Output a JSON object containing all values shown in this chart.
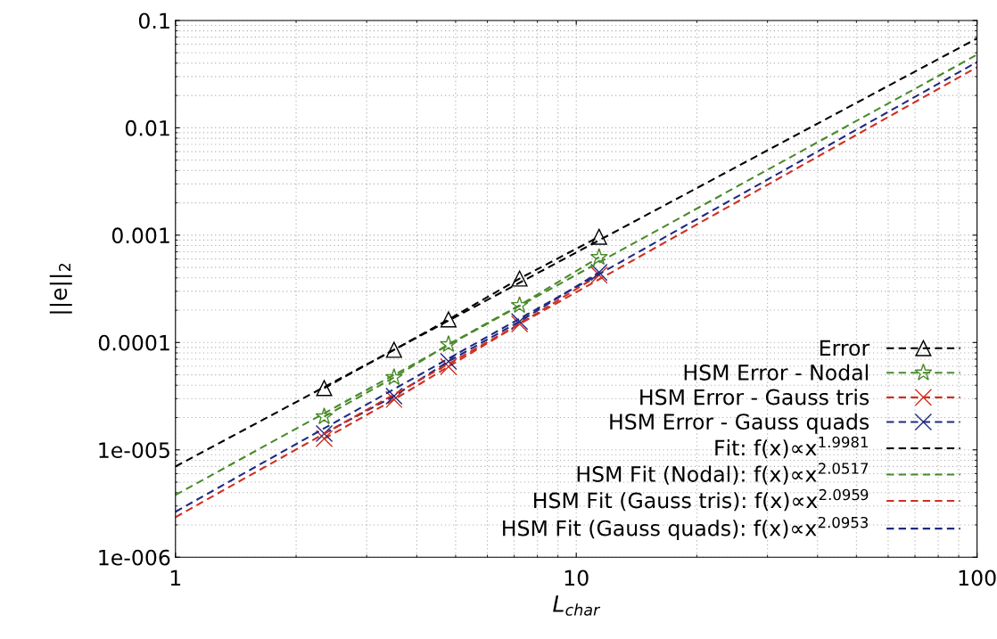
{
  "chart_data": {
    "type": "line",
    "xlabel": "L$_{char}$",
    "ylabel": "||e||$_{2}$",
    "log": "xy",
    "grid": true,
    "legend": "bottom right",
    "line_style": "dashed",
    "xlim": [
      1,
      100
    ],
    "xticks": [
      1,
      10,
      100
    ],
    "ylim": [
      1e-06,
      0.1
    ],
    "yticks": [
      {
        "value": 1e-06,
        "label": "1e-006"
      },
      {
        "value": 1e-05,
        "label": "1e-005"
      },
      0.0001,
      0.001,
      0.01,
      0.1
    ],
    "series": [
      {
        "name": "Error",
        "color": "#000000",
        "marker": "triangle",
        "x": [
          2.35,
          3.51,
          4.8,
          7.22,
          11.4
        ],
        "values": [
          3.76e-05,
          8.55e-05,
          0.000164,
          0.000394,
          0.000966
        ]
      },
      {
        "name": "HSM Error - Nodal",
        "color": "#4a8a2a",
        "marker": "star",
        "x": [
          2.35,
          3.51,
          4.8,
          7.22,
          11.4
        ],
        "values": [
          2.04e-05,
          4.73e-05,
          9.6e-05,
          0.000222,
          0.000622
        ]
      },
      {
        "name": "HSM Error - Gauss tris",
        "color": "#d03020",
        "marker": "cross",
        "x": [
          2.35,
          3.51,
          4.8,
          7.22,
          11.4
        ],
        "values": [
          1.27e-05,
          2.94e-05,
          5.96e-05,
          0.000149,
          0.000425
        ]
      },
      {
        "name": "HSM Error - Gauss quads",
        "color": "#202a80",
        "marker": "cross",
        "x": [
          2.35,
          3.51,
          4.8,
          7.22,
          11.4
        ],
        "values": [
          1.42e-05,
          3.17e-05,
          6.67e-05,
          0.000157,
          0.00045
        ]
      },
      {
        "name": "Fit: f(x)∝x$^{1.9981}$",
        "color": "#000000",
        "marker": "none",
        "x": [
          1,
          100
        ],
        "values": [
          7e-06,
          0.068
        ]
      },
      {
        "name": "HSM Fit (Nodal): f(x)∝x$^{2.0517}$",
        "color": "#4a8a2a",
        "marker": "none",
        "x": [
          1,
          100
        ],
        "values": [
          3.8e-06,
          0.048
        ]
      },
      {
        "name": "HSM Fit (Gauss tris): f(x)∝x$^{2.0959}$",
        "color": "#d03020",
        "marker": "none",
        "x": [
          1,
          100
        ],
        "values": [
          2.36e-06,
          0.0367
        ]
      },
      {
        "name": "HSM Fit (Gauss quads): f(x)∝x$^{2.0953}$",
        "color": "#202a80",
        "marker": "none",
        "x": [
          1,
          100
        ],
        "values": [
          2.65e-06,
          0.041
        ]
      }
    ]
  }
}
